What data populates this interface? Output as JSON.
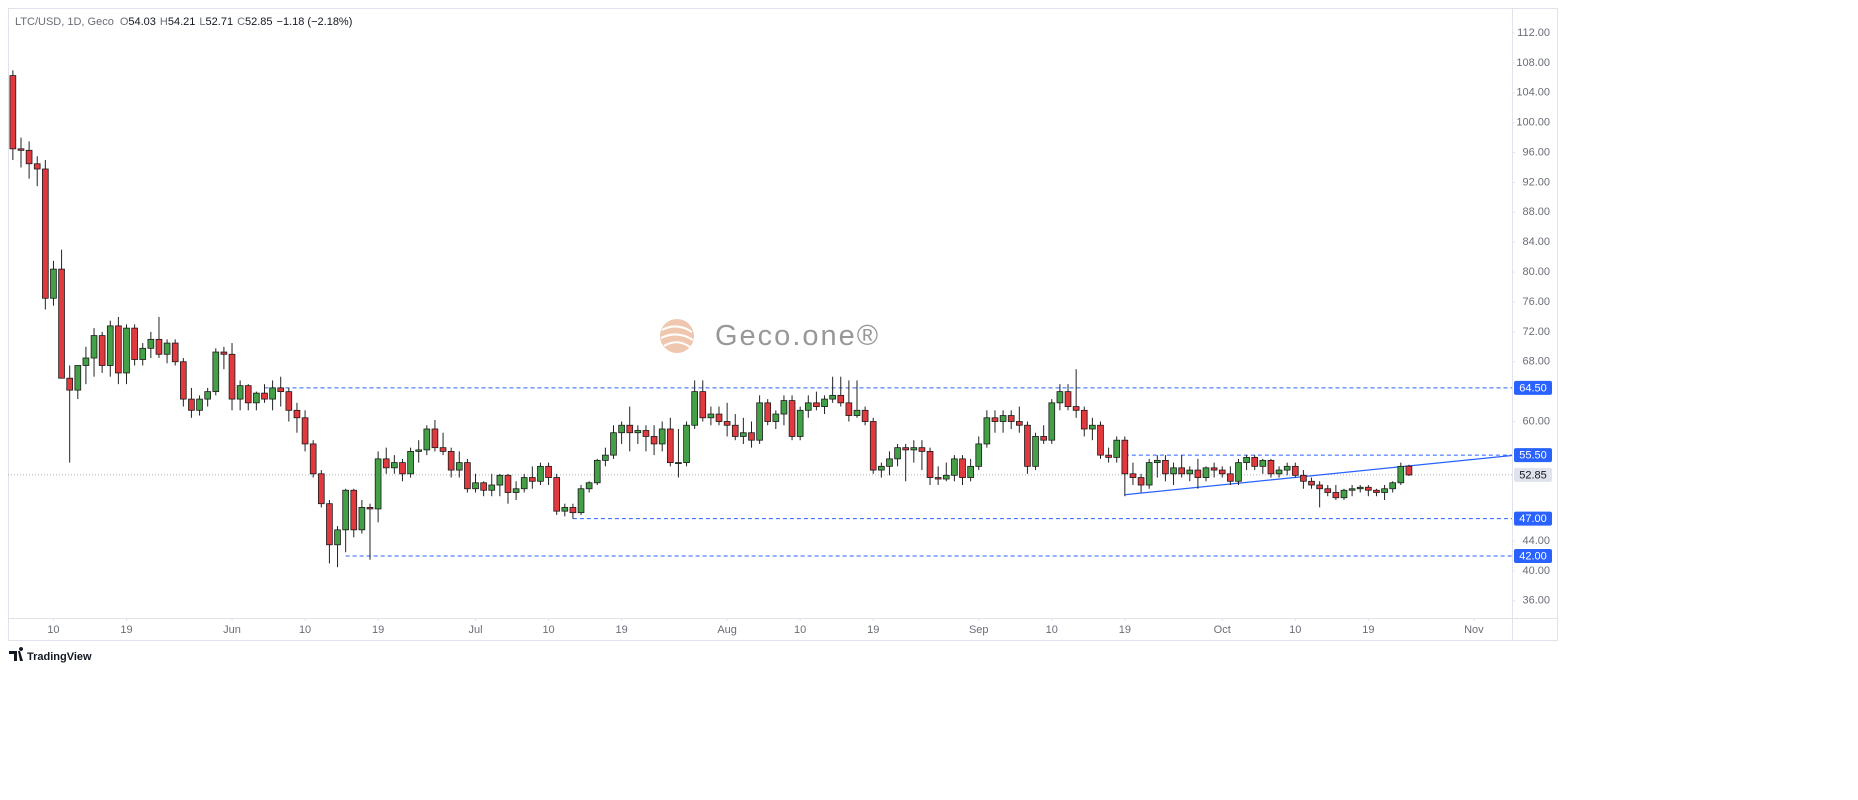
{
  "header": {
    "symbol": "LTC/USD, 1D, Geco",
    "ohlc": [
      {
        "label": "O",
        "value": 54.03
      },
      {
        "label": "H",
        "value": 54.21
      },
      {
        "label": "L",
        "value": 52.71
      },
      {
        "label": "C",
        "value": 52.85
      }
    ],
    "change": "−1.18 (−2.18%)"
  },
  "watermark": "Geco.one®",
  "footer": "TradingView",
  "chart_data": {
    "type": "candlestick",
    "up_color": "#43a047",
    "down_color": "#e0393e",
    "wick_color": "#222222",
    "open": [
      106.3,
      96.5,
      96.3,
      94.5,
      93.8,
      76.5,
      80.4,
      65.8,
      64.2,
      67.5,
      68.5,
      71.5,
      67.5,
      72.8,
      66.5,
      72.5,
      68.3,
      69.8,
      71,
      69,
      70.5,
      68,
      63,
      61.5,
      63,
      64,
      69.3,
      69,
      63,
      64.8,
      62.5,
      63.8,
      63,
      64.5,
      64,
      61.5,
      60.5,
      57,
      53,
      49,
      43.5,
      45.5,
      50.8,
      45.5,
      48.5,
      48.3,
      55,
      53.8,
      54.5,
      53,
      56,
      56.2,
      59,
      56.5,
      56,
      53.5,
      54.5,
      51,
      51.8,
      50.8,
      51.5,
      52.8,
      50.5,
      51,
      52.5,
      52,
      54,
      52.5,
      48,
      48.5,
      47.8,
      51,
      51.8,
      54.8,
      55.5,
      58.5,
      59.5,
      58.5,
      58.8,
      58,
      57,
      59,
      54.5,
      54.5,
      59.5,
      64,
      60.5,
      61,
      60,
      59.5,
      58,
      58.5,
      57.5,
      62.5,
      60,
      61,
      62.8,
      58,
      61.5,
      62.5,
      62,
      63,
      63.5,
      62.5,
      60.8,
      61.5,
      60,
      53.5,
      54,
      55,
      56.5,
      56.2,
      56.5,
      56,
      52.5,
      52.3,
      52.8,
      55,
      52.5,
      54,
      57,
      60.5,
      60,
      60.8,
      60,
      59.5,
      54,
      58,
      57.5,
      62.5,
      64,
      62,
      61.5,
      59,
      59.5,
      55.5,
      55.2,
      57.5,
      53,
      52.5,
      51.5,
      54.5,
      54.8,
      53,
      53.8,
      53,
      53.5,
      52.5,
      53.8,
      53.5,
      53,
      52,
      54.5,
      55.2,
      54,
      54.8,
      53,
      53.5,
      54,
      52.8,
      52,
      51.5,
      51,
      50.5,
      49.8,
      50.8,
      51,
      51.2,
      50.8,
      50.5,
      51,
      51.8,
      54.03
    ],
    "high": [
      107,
      98,
      97.5,
      95.5,
      95,
      81.5,
      83,
      67.5,
      67.5,
      70,
      72.5,
      72,
      73.5,
      74,
      73,
      73,
      70.5,
      72,
      74,
      71,
      71,
      68.5,
      64.5,
      63.5,
      64.5,
      69.8,
      70,
      70.5,
      65.5,
      65,
      64,
      65,
      65.5,
      66,
      64.5,
      62.5,
      61.5,
      57.5,
      53.5,
      49.5,
      46,
      51,
      51,
      49.5,
      49,
      56,
      56.5,
      55.5,
      55,
      56.5,
      57.5,
      59.5,
      60.2,
      58.5,
      56.5,
      56,
      55,
      53,
      52,
      53,
      53,
      53,
      52,
      53,
      54,
      54.5,
      54.5,
      53,
      49,
      49,
      51.5,
      52,
      55,
      56.5,
      59.5,
      60,
      62,
      59.5,
      59.5,
      59.5,
      60,
      60.5,
      59,
      60,
      65.5,
      65.5,
      62,
      62,
      62.5,
      61,
      60.5,
      60,
      63.5,
      63,
      61.5,
      63.5,
      63.5,
      62,
      63.5,
      64,
      63.5,
      66,
      66,
      65.5,
      65.5,
      62,
      60.5,
      54.5,
      56,
      57,
      57,
      57.5,
      57.5,
      56.5,
      54,
      54.5,
      55.5,
      55.5,
      55,
      58,
      61.5,
      61.5,
      61.5,
      61.5,
      62,
      60,
      58.5,
      59.5,
      63,
      65,
      65,
      67,
      62,
      60.5,
      60,
      56.5,
      58,
      58,
      54.5,
      53,
      55,
      55.5,
      55.5,
      54.5,
      55.5,
      54,
      55,
      54,
      54.5,
      54,
      54,
      55,
      55.5,
      55.5,
      55,
      55,
      54,
      54.5,
      54.5,
      53.5,
      52.5,
      52,
      51.5,
      51.5,
      51,
      51.5,
      51.5,
      51.5,
      51,
      51.5,
      52,
      54.5,
      54.21
    ],
    "low": [
      95,
      94,
      92.5,
      91.5,
      75,
      75.5,
      66,
      54.5,
      63,
      65,
      66,
      66.5,
      66,
      65,
      65,
      67.5,
      67.5,
      68.5,
      68.5,
      67.8,
      67.5,
      62,
      60.5,
      60.8,
      62,
      63.5,
      67,
      61.5,
      61.5,
      61.5,
      61.5,
      62.5,
      61.5,
      62,
      60,
      58.5,
      56,
      52.5,
      48.5,
      41,
      40.5,
      42.5,
      44.5,
      45,
      41.5,
      46.5,
      53,
      53,
      52,
      52.5,
      54.5,
      55.5,
      56,
      55.5,
      52.5,
      52.5,
      50.5,
      50.5,
      50,
      50,
      50,
      49,
      49.5,
      50.5,
      51,
      51.5,
      51.5,
      47.5,
      47.3,
      47,
      47.5,
      50.5,
      51.5,
      54,
      55,
      57,
      56,
      57,
      56,
      55.5,
      56,
      54,
      52.5,
      54,
      59,
      60,
      59.5,
      59.5,
      58,
      57.5,
      57,
      56.5,
      57,
      59.5,
      59,
      59.5,
      57.5,
      57.5,
      60.5,
      61.5,
      61,
      62.5,
      62,
      60,
      60.5,
      59.5,
      53,
      52.5,
      52.8,
      54,
      52,
      54.5,
      53.5,
      51.5,
      51.5,
      52,
      52,
      51.5,
      52,
      53.5,
      56.5,
      58.5,
      58.5,
      59,
      58.5,
      53,
      53.5,
      57,
      57,
      61.5,
      61.5,
      60.5,
      58,
      57.5,
      55,
      54.5,
      54.5,
      50,
      51.5,
      50.5,
      51,
      52.5,
      52,
      51.5,
      52.5,
      52,
      51,
      52,
      52.5,
      52.5,
      51.5,
      51.5,
      53.5,
      53.5,
      53,
      52.5,
      52.5,
      52.8,
      52.5,
      51,
      51,
      48.5,
      50,
      49.5,
      49.5,
      50,
      50.5,
      50,
      50,
      49.5,
      50.5,
      51.5,
      52.71
    ],
    "close": [
      96.5,
      96.3,
      94.5,
      93.8,
      76.5,
      80.4,
      65.8,
      64.2,
      67.5,
      68.5,
      71.5,
      67.5,
      72.8,
      66.5,
      72.5,
      68.3,
      69.8,
      71,
      69,
      70.5,
      68,
      63,
      61.5,
      63,
      64,
      69.3,
      69,
      63,
      64.8,
      62.5,
      63.8,
      63,
      64.5,
      64,
      61.5,
      60.5,
      57,
      53,
      49,
      43.5,
      45.5,
      50.8,
      45.5,
      48.5,
      48.3,
      55,
      53.8,
      54.5,
      53,
      56,
      56.2,
      59,
      56.5,
      56,
      53.5,
      54.5,
      51,
      51.8,
      50.8,
      51.5,
      52.8,
      50.5,
      51,
      52.5,
      52,
      54,
      52.5,
      48,
      48.5,
      47.8,
      51,
      51.8,
      54.8,
      55.5,
      58.5,
      59.5,
      58.5,
      58.8,
      58,
      57,
      59,
      54.5,
      54.5,
      59.5,
      64,
      60.5,
      61,
      60,
      59.5,
      58,
      58.5,
      57.5,
      62.5,
      60,
      61,
      62.8,
      58,
      61.5,
      62.5,
      62,
      63,
      63.5,
      62.5,
      60.8,
      61.5,
      60,
      53.5,
      54,
      55,
      56.5,
      56.2,
      56.5,
      56,
      52.5,
      52.3,
      52.8,
      55,
      52.5,
      54,
      57,
      60.5,
      60,
      60.8,
      60,
      59.5,
      54,
      58,
      57.5,
      62.5,
      64,
      62,
      61.5,
      59,
      59.5,
      55.5,
      55.2,
      57.5,
      53,
      52.5,
      51.5,
      54.5,
      54.8,
      53,
      53.8,
      53,
      53.5,
      52.5,
      53.8,
      53.5,
      53,
      52,
      54.5,
      55.2,
      54,
      54.8,
      53,
      53.5,
      54,
      52.8,
      52,
      51.5,
      51,
      50.5,
      49.8,
      50.8,
      51,
      51.2,
      50.8,
      50.5,
      51,
      51.8,
      54,
      52.85
    ],
    "xlim": [
      -0.6,
      184.7
    ],
    "xticks": [
      {
        "value": 5,
        "label": "10"
      },
      {
        "value": 14,
        "label": "19"
      },
      {
        "value": 27,
        "label": "Jun"
      },
      {
        "value": 36,
        "label": "10"
      },
      {
        "value": 45,
        "label": "19"
      },
      {
        "value": 57,
        "label": "Jul"
      },
      {
        "value": 66,
        "label": "10"
      },
      {
        "value": 75,
        "label": "19"
      },
      {
        "value": 88,
        "label": "Aug"
      },
      {
        "value": 97,
        "label": "10"
      },
      {
        "value": 106,
        "label": "19"
      },
      {
        "value": 119,
        "label": "Sep"
      },
      {
        "value": 128,
        "label": "10"
      },
      {
        "value": 137,
        "label": "19"
      },
      {
        "value": 149,
        "label": "Oct"
      },
      {
        "value": 158,
        "label": "10"
      },
      {
        "value": 167,
        "label": "19"
      },
      {
        "value": 180,
        "label": "Nov"
      }
    ],
    "ylim": [
      33.7,
      115.35
    ],
    "yticks": [
      {
        "value": 112,
        "label": "112.00"
      },
      {
        "value": 108,
        "label": "108.00"
      },
      {
        "value": 104,
        "label": "104.00"
      },
      {
        "value": 100,
        "label": "100.00"
      },
      {
        "value": 96,
        "label": "96.00"
      },
      {
        "value": 92,
        "label": "92.00"
      },
      {
        "value": 88,
        "label": "88.00"
      },
      {
        "value": 84,
        "label": "84.00"
      },
      {
        "value": 80,
        "label": "80.00"
      },
      {
        "value": 76,
        "label": "76.00"
      },
      {
        "value": 72,
        "label": "72.00"
      },
      {
        "value": 68,
        "label": "68.00"
      },
      {
        "value": 60,
        "label": "60.00"
      },
      {
        "value": 44,
        "label": "44.00"
      },
      {
        "value": 40,
        "label": "40.00"
      },
      {
        "value": 36,
        "label": "36.00"
      }
    ],
    "levels": [
      {
        "value": 64.5,
        "label": "64.50",
        "start": 31
      },
      {
        "value": 55.5,
        "label": "55.50",
        "start": 137
      },
      {
        "value": 47,
        "label": "47.00",
        "start": 69
      },
      {
        "value": 42,
        "label": "42.00",
        "start": 41
      }
    ],
    "level_color": "#2962ff",
    "trendline": {
      "start": [
        137,
        50.2
      ],
      "end": [
        171.5,
        54.0
      ]
    },
    "last_price": {
      "value": 52.85,
      "label": "52.85"
    }
  }
}
